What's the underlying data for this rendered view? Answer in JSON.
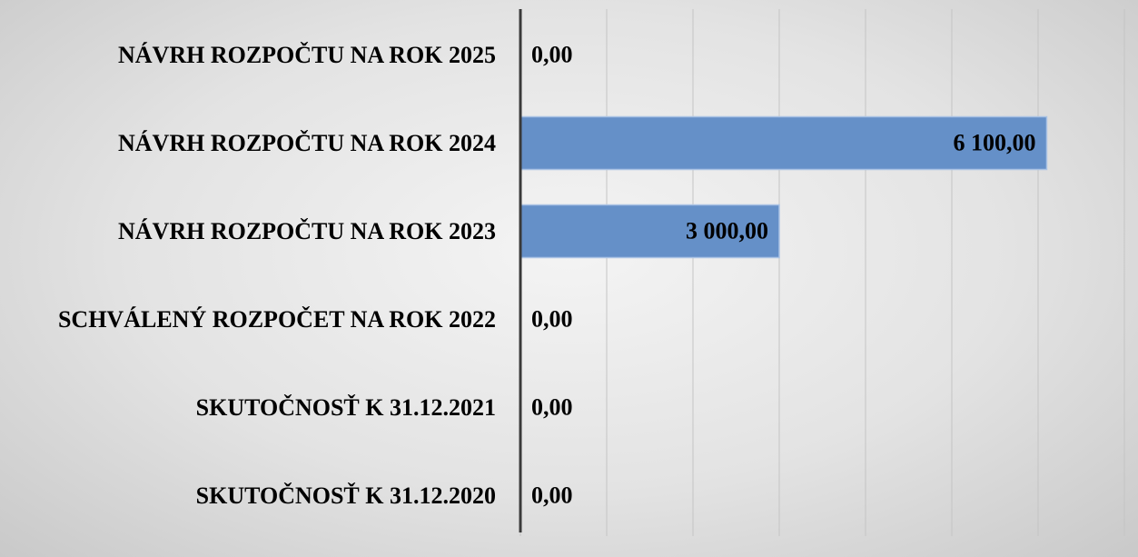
{
  "chart_data": {
    "type": "barh",
    "categories": [
      "NÁVRH ROZPOČTU NA ROK 2025",
      "NÁVRH ROZPOČTU NA ROK 2024",
      "NÁVRH ROZPOČTU NA ROK 2023",
      "SCHVÁLENÝ ROZPOČET NA ROK 2022",
      "SKUTOČNOSŤ K 31.12.2021",
      "SKUTOČNOSŤ K 31.12.2020"
    ],
    "values": [
      0,
      6100,
      3000,
      0,
      0,
      0
    ],
    "value_labels": [
      "0,00",
      "6 100,00",
      "3 000,00",
      "0,00",
      "0,00",
      "0,00"
    ],
    "color": "#6590c8",
    "xlim": [
      0,
      7000
    ],
    "xticks": [
      0,
      1000,
      2000,
      3000,
      4000,
      5000,
      6000,
      7000
    ],
    "grid": true
  }
}
